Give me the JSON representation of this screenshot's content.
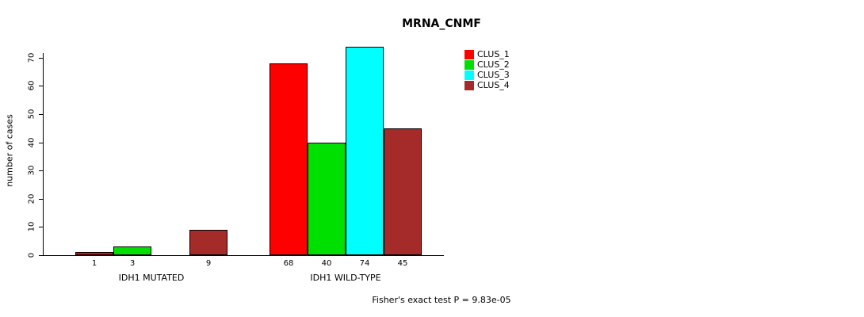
{
  "title": "MRNA_CNMF",
  "chart_data": {
    "type": "bar",
    "title": "MRNA_CNMF",
    "ylabel": "number of cases",
    "xlabel": "",
    "ylim": [
      0,
      75
    ],
    "yticks": [
      0,
      10,
      20,
      30,
      40,
      50,
      60,
      70
    ],
    "grid": false,
    "legend_position": "top-right",
    "series": [
      {
        "name": "CLUS_1",
        "color": "#FF0000"
      },
      {
        "name": "CLUS_2",
        "color": "#00E000"
      },
      {
        "name": "CLUS_3",
        "color": "#00FFFF"
      },
      {
        "name": "CLUS_4",
        "color": "#A52A2A"
      }
    ],
    "groups": [
      {
        "label": "IDH1 MUTATED",
        "values": [
          1,
          3,
          0,
          9
        ],
        "bar_labels": [
          "1",
          "3",
          "",
          "9"
        ]
      },
      {
        "label": "IDH1 WILD-TYPE",
        "values": [
          68,
          40,
          74,
          45
        ],
        "bar_labels": [
          "68",
          "40",
          "74",
          "45"
        ]
      }
    ],
    "annotation": "Fisher's exact test P = 9.83e-05"
  }
}
